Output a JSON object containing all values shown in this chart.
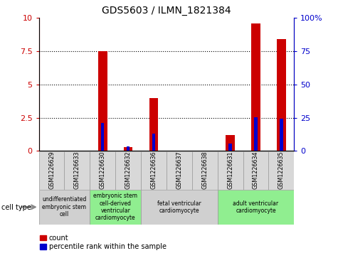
{
  "title": "GDS5603 / ILMN_1821384",
  "samples": [
    "GSM1226629",
    "GSM1226633",
    "GSM1226630",
    "GSM1226632",
    "GSM1226636",
    "GSM1226637",
    "GSM1226638",
    "GSM1226631",
    "GSM1226634",
    "GSM1226635"
  ],
  "count_values": [
    0.0,
    0.0,
    7.5,
    0.3,
    4.0,
    0.0,
    0.0,
    1.2,
    9.6,
    8.4
  ],
  "percentile_values": [
    0.0,
    0.0,
    21.0,
    3.5,
    13.0,
    0.0,
    0.0,
    5.5,
    25.5,
    24.0
  ],
  "ylim_left": [
    0,
    10
  ],
  "ylim_right": [
    0,
    100
  ],
  "yticks_left": [
    0,
    2.5,
    5.0,
    7.5,
    10
  ],
  "yticks_right": [
    0,
    25,
    50,
    75,
    100
  ],
  "count_color": "#cc0000",
  "percentile_color": "#0000cc",
  "bg_color": "#ffffff",
  "cell_type_groups": [
    {
      "label": "undifferentiated\nembryonic stem\ncell",
      "start": 0,
      "end": 2,
      "color": "#d0d0d0"
    },
    {
      "label": "embryonic stem\ncell-derived\nventricular\ncardiomyocyte",
      "start": 2,
      "end": 4,
      "color": "#90ee90"
    },
    {
      "label": "fetal ventricular\ncardiomyocyte",
      "start": 4,
      "end": 7,
      "color": "#d0d0d0"
    },
    {
      "label": "adult ventricular\ncardiomyocyte",
      "start": 7,
      "end": 10,
      "color": "#90ee90"
    }
  ],
  "legend_count_label": "count",
  "legend_percentile_label": "percentile rank within the sample",
  "cell_type_label": "cell type"
}
